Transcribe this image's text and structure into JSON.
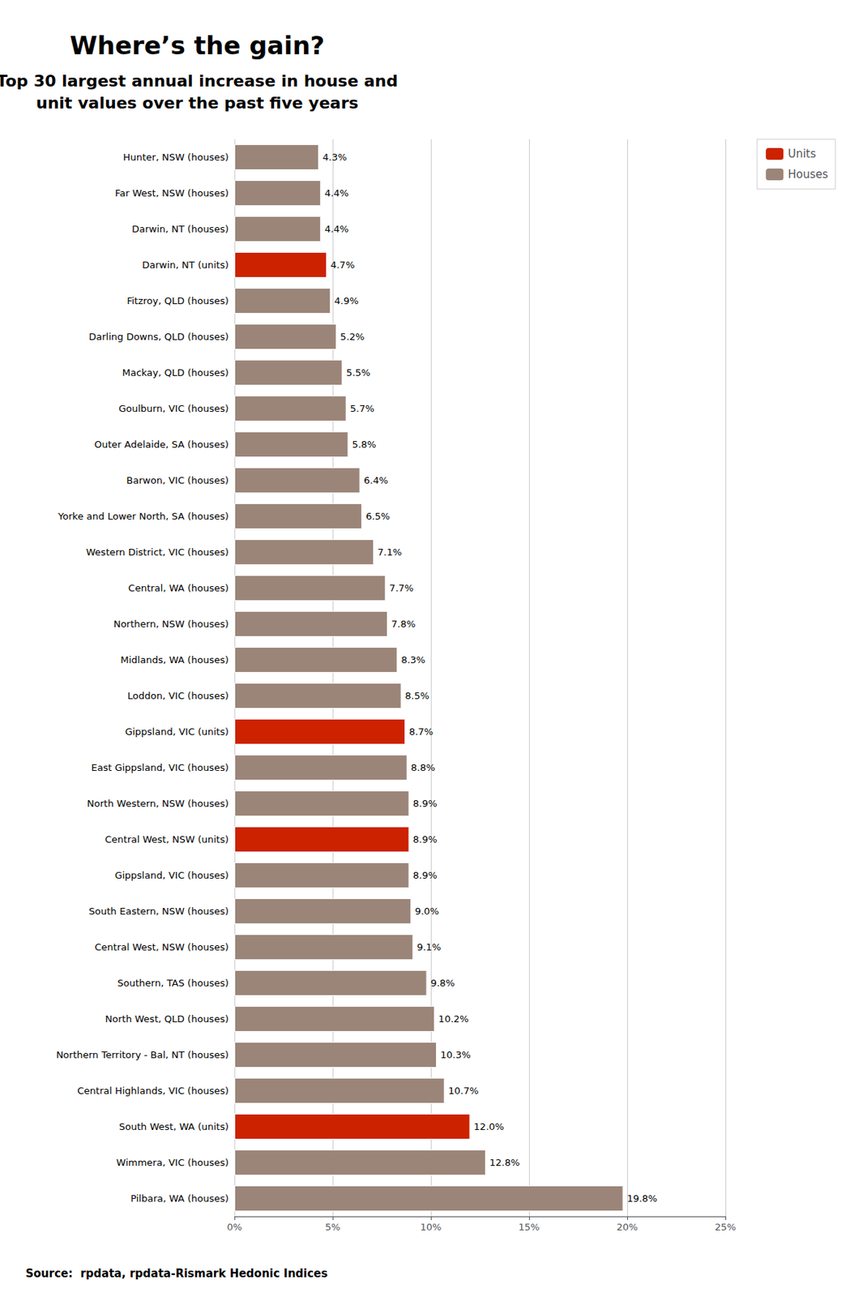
{
  "chart_data": {
    "type": "bar",
    "orientation": "horizontal",
    "title": "Where’s the gain?",
    "subtitle": "Top 30 largest annual increase in house and\nunit values over the past five years",
    "annotations": [
      "Source:  rpdata, rpdata-Rismark Hedonic Indices"
    ],
    "categories": [
      "Hunter, NSW (houses)",
      "Far West, NSW (houses)",
      "Darwin, NT (houses)",
      "Darwin, NT (units)",
      "Fitzroy, QLD (houses)",
      "Darling Downs, QLD (houses)",
      "Mackay, QLD (houses)",
      "Goulburn, VIC (houses)",
      "Outer Adelaide, SA (houses)",
      "Barwon, VIC (houses)",
      "Yorke and Lower North, SA (houses)",
      "Western District, VIC (houses)",
      "Central, WA (houses)",
      "Northern, NSW (houses)",
      "Midlands, WA (houses)",
      "Loddon, VIC (houses)",
      "Gippsland, VIC (units)",
      "East Gippsland, VIC (houses)",
      "North Western, NSW (houses)",
      "Central West, NSW (units)",
      "Gippsland, VIC (houses)",
      "South Eastern, NSW (houses)",
      "Central West, NSW (houses)",
      "Southern, TAS (houses)",
      "North West, QLD (houses)",
      "Northern Territory - Bal, NT (houses)",
      "Central Highlands, VIC (houses)",
      "South West, WA (units)",
      "Wimmera, VIC (houses)",
      "Pilbara, WA (houses)"
    ],
    "series": [
      {
        "name": "Units",
        "color": "#cc2200",
        "values": [
          null,
          null,
          null,
          4.7,
          null,
          null,
          null,
          null,
          null,
          null,
          null,
          null,
          null,
          null,
          null,
          null,
          8.7,
          null,
          null,
          8.9,
          null,
          null,
          null,
          null,
          null,
          null,
          null,
          12.0,
          null,
          null
        ],
        "value_labels": [
          null,
          null,
          null,
          "4.7%",
          null,
          null,
          null,
          null,
          null,
          null,
          null,
          null,
          null,
          null,
          null,
          null,
          "8.7%",
          null,
          null,
          "8.9%",
          null,
          null,
          null,
          null,
          null,
          null,
          null,
          "12.0%",
          null,
          null
        ]
      },
      {
        "name": "Houses",
        "color": "#9b8579",
        "values": [
          4.3,
          4.4,
          4.4,
          null,
          4.9,
          5.2,
          5.5,
          5.7,
          5.8,
          6.4,
          6.5,
          7.1,
          7.7,
          7.8,
          8.3,
          8.5,
          null,
          8.8,
          8.9,
          null,
          8.9,
          9.0,
          9.1,
          9.8,
          10.2,
          10.3,
          10.7,
          null,
          12.8,
          19.8
        ],
        "value_labels": [
          "4.3%",
          "4.4%",
          "4.4%",
          null,
          "4.9%",
          "5.2%",
          "5.5%",
          "5.7%",
          "5.8%",
          "6.4%",
          "6.5%",
          "7.1%",
          "7.7%",
          "7.8%",
          "8.3%",
          "8.5%",
          null,
          "8.8%",
          "8.9%",
          null,
          "8.9%",
          "9.0%",
          "9.1%",
          "9.8%",
          "10.2%",
          "10.3%",
          "10.7%",
          null,
          "12.8%",
          "19.8%"
        ]
      }
    ],
    "stacked": true,
    "xlim": [
      0,
      25
    ],
    "xticks": [
      {
        "value": 0,
        "label": "0%"
      },
      {
        "value": 5,
        "label": "5%"
      },
      {
        "value": 10,
        "label": "10%"
      },
      {
        "value": 15,
        "label": "15%"
      },
      {
        "value": 20,
        "label": "20%"
      },
      {
        "value": 25,
        "label": "25%"
      }
    ],
    "grid": true,
    "legend": "upper right"
  }
}
